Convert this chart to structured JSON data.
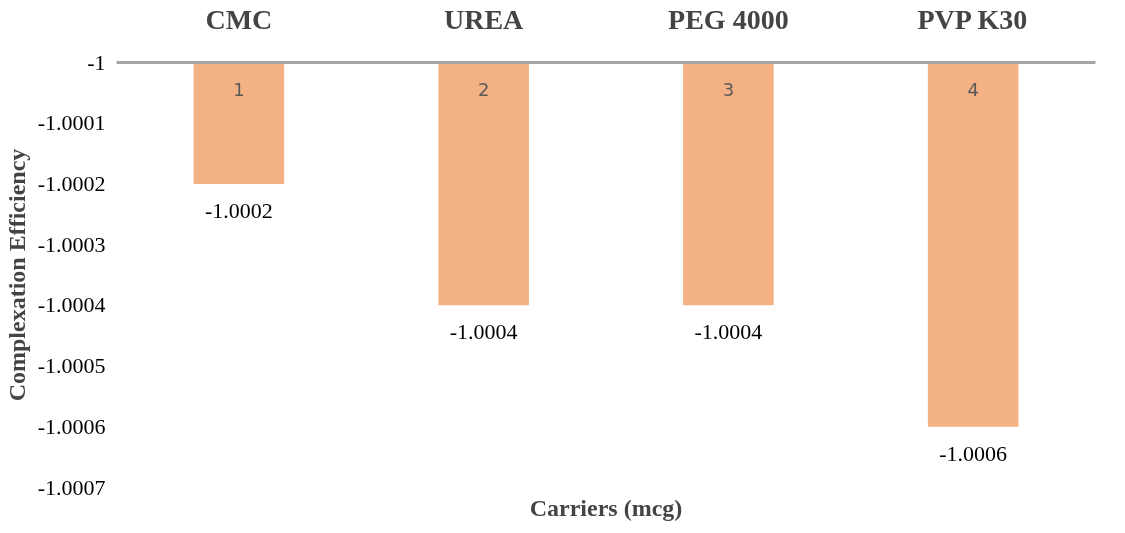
{
  "chart_data": {
    "type": "bar",
    "xlabel": "Carriers (mcg)",
    "ylabel": "Complexation Efficiency",
    "categories": [
      "CMC",
      "UREA",
      "PEG 4000",
      "PVP K30"
    ],
    "values": [
      -1.0002,
      -1.0004,
      -1.0004,
      -1.0006
    ],
    "color": "#f4b183",
    "ylim": [
      -1.0007,
      -1
    ],
    "yticks": [
      -1,
      -1.0001,
      -1.0002,
      -1.0003,
      -1.0004,
      -1.0005,
      -1.0006,
      -1.0007
    ],
    "data_labels": true,
    "grid": false,
    "annotations": [
      "1",
      "2",
      "3",
      "4"
    ]
  }
}
